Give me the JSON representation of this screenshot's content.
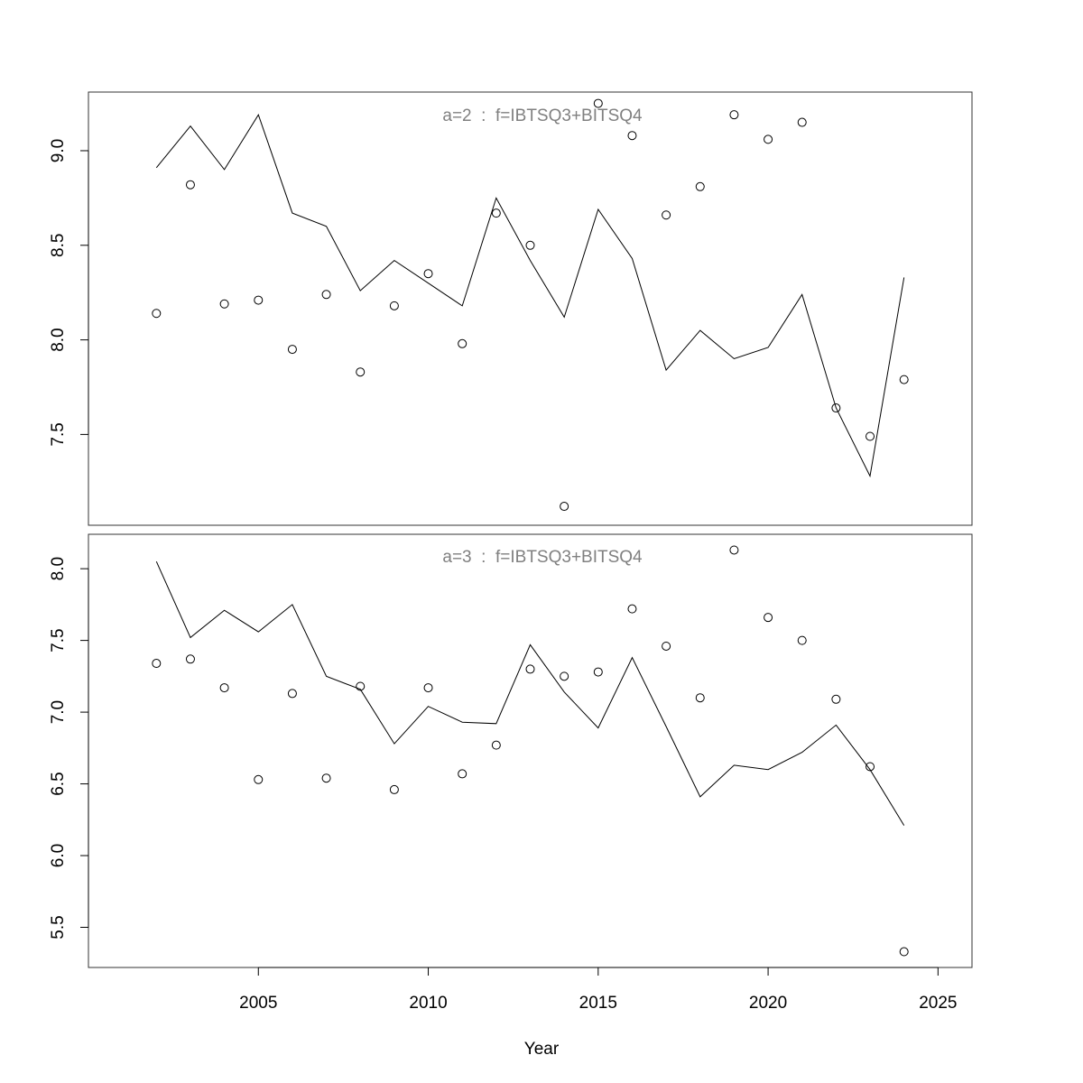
{
  "chart_data": [
    {
      "type": "line",
      "title": "a=2  :  f=IBTSQ3+BITSQ4",
      "xlabel": "",
      "ylabel": "",
      "xlim": [
        2000,
        2026
      ],
      "ylim": [
        7.02,
        9.31
      ],
      "yticks": [
        7.5,
        8.0,
        8.5,
        9.0
      ],
      "x": [
        2002,
        2003,
        2004,
        2005,
        2006,
        2007,
        2008,
        2009,
        2010,
        2011,
        2012,
        2013,
        2014,
        2015,
        2016,
        2017,
        2018,
        2019,
        2020,
        2021,
        2022,
        2023,
        2024
      ],
      "series": [
        {
          "style": "line",
          "values": [
            8.91,
            9.13,
            8.9,
            9.19,
            8.67,
            8.6,
            8.26,
            8.42,
            8.3,
            8.18,
            8.75,
            8.42,
            8.12,
            8.69,
            8.43,
            7.84,
            8.05,
            7.9,
            7.96,
            8.24,
            7.64,
            7.28,
            8.33
          ]
        },
        {
          "style": "points",
          "values": [
            8.14,
            8.82,
            8.19,
            8.21,
            7.95,
            8.24,
            7.83,
            8.18,
            8.35,
            7.98,
            8.67,
            8.5,
            7.12,
            9.25,
            9.08,
            8.66,
            8.81,
            9.19,
            9.06,
            9.15,
            7.64,
            7.49,
            7.79
          ]
        }
      ],
      "grid": false,
      "legend": "none"
    },
    {
      "type": "line",
      "title": "a=3  :  f=IBTSQ3+BITSQ4",
      "xlabel": "Year",
      "ylabel": "",
      "xlim": [
        2000,
        2026
      ],
      "ylim": [
        5.22,
        8.24
      ],
      "yticks": [
        5.5,
        6.0,
        6.5,
        7.0,
        7.5,
        8.0
      ],
      "xticks": [
        2005,
        2010,
        2015,
        2020,
        2025
      ],
      "x": [
        2002,
        2003,
        2004,
        2005,
        2006,
        2007,
        2008,
        2009,
        2010,
        2011,
        2012,
        2013,
        2014,
        2015,
        2016,
        2017,
        2018,
        2019,
        2020,
        2021,
        2022,
        2023,
        2024
      ],
      "series": [
        {
          "style": "line",
          "values": [
            8.05,
            7.52,
            7.71,
            7.56,
            7.75,
            7.25,
            7.16,
            6.78,
            7.04,
            6.93,
            6.92,
            7.47,
            7.14,
            6.89,
            7.38,
            6.9,
            6.41,
            6.63,
            6.6,
            6.72,
            6.91,
            6.6,
            6.21
          ]
        },
        {
          "style": "points",
          "values": [
            7.34,
            7.37,
            7.17,
            6.53,
            7.13,
            6.54,
            7.18,
            6.46,
            7.17,
            6.57,
            6.77,
            7.3,
            7.25,
            7.28,
            7.72,
            7.46,
            7.1,
            8.13,
            7.66,
            7.5,
            7.09,
            6.62,
            5.33
          ]
        }
      ],
      "grid": false,
      "legend": "none"
    }
  ]
}
